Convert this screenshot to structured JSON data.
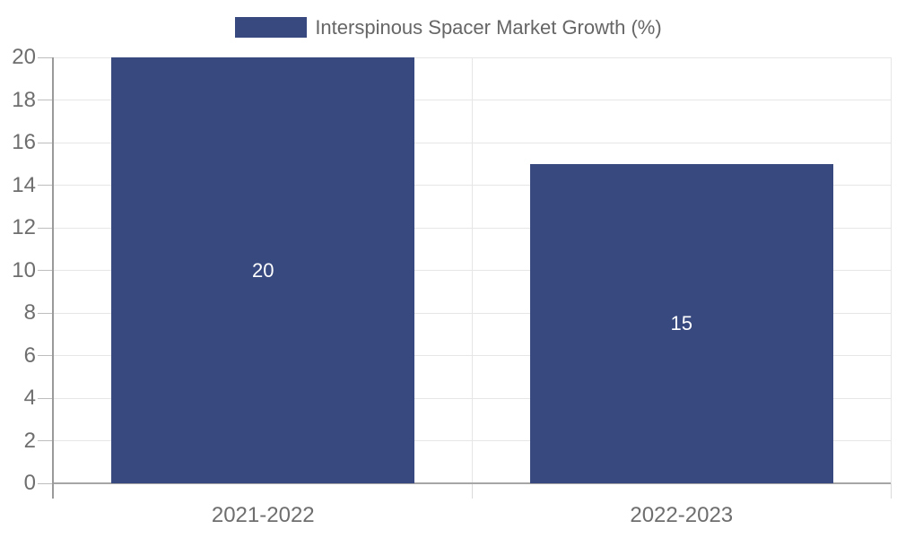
{
  "legend": {
    "label": "Interspinous Spacer Market Growth (%)"
  },
  "chart_data": {
    "type": "bar",
    "categories": [
      "2021-2022",
      "2022-2023"
    ],
    "values": [
      20,
      15
    ],
    "data_labels": [
      "20",
      "15"
    ],
    "series_name": "Interspinous Spacer Market Growth (%)",
    "title": "",
    "xlabel": "",
    "ylabel": "",
    "ylim": [
      0,
      20
    ],
    "yticks": [
      0,
      2,
      4,
      6,
      8,
      10,
      12,
      14,
      16,
      18,
      20
    ],
    "grid": true,
    "legend_position": "top",
    "colors": {
      "bar": "#38497f",
      "data_label": "#ffffff",
      "grid": "#e6e6e6",
      "tick_mark": "#bdbdbd",
      "x_tick_mark": "#dadada",
      "axis_left": "#9a9a9a",
      "axis_bottom": "#a6a6a6",
      "tick_label": "#6e6e6e",
      "legend_text": "#666666",
      "background": "#ffffff"
    }
  }
}
